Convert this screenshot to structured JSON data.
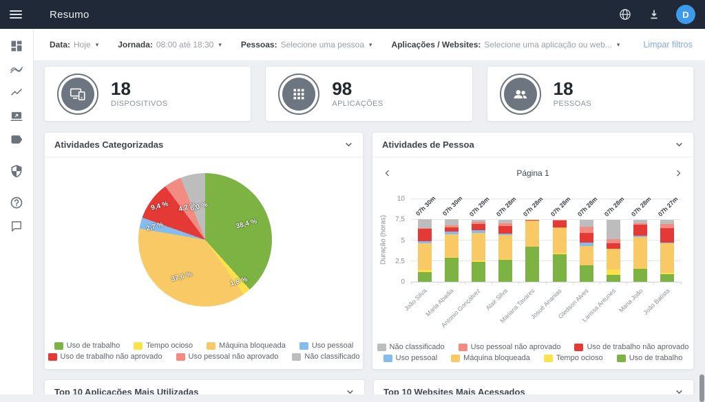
{
  "topbar": {
    "title": "Resumo",
    "avatar_initial": "D",
    "icons": [
      "menu-icon",
      "globe-icon",
      "download-icon"
    ]
  },
  "sidebar": {
    "items": [
      {
        "icon": "dashboard-icon"
      },
      {
        "icon": "multiline-chart-icon"
      },
      {
        "icon": "line-chart-icon"
      },
      {
        "icon": "screenshot-icon"
      },
      {
        "icon": "tag-icon"
      },
      {
        "icon": "shield-icon"
      },
      {
        "icon": "help-icon"
      },
      {
        "icon": "chat-icon"
      }
    ]
  },
  "filters": {
    "items": [
      {
        "label": "Data:",
        "value": "Hoje"
      },
      {
        "label": "Jornada:",
        "value": "08:00 até 18:30"
      },
      {
        "label": "Pessoas:",
        "value": "Selecione uma pessoa"
      },
      {
        "label": "Aplicações / Websites:",
        "value": "Selecione uma aplicação ou web..."
      }
    ],
    "clear_label": "Limpar filtros"
  },
  "stats": [
    {
      "value": "18",
      "label": "DISPOSITIVOS",
      "icon": "devices-icon"
    },
    {
      "value": "98",
      "label": "APLICAÇÕES",
      "icon": "apps-grid-icon"
    },
    {
      "value": "18",
      "label": "PESSOAS",
      "icon": "people-icon"
    }
  ],
  "cards": {
    "bottom": [
      {
        "title": "Top 10 Aplicações Mais Utilizadas"
      },
      {
        "title": "Top 10 Websites Mais Acessados"
      }
    ]
  },
  "colors": {
    "topbar_bg": "#202938",
    "avatar_blue": "#3d9be9",
    "link_blue": "#7fa9ea",
    "stat_icon_gray": "#6d7580"
  },
  "chart_data": [
    {
      "type": "pie",
      "title": "Atividades Categorizadas",
      "labels": [
        "Uso de trabalho",
        "Tempo ocioso",
        "Máquina bloqueada",
        "Uso pessoal",
        "Uso de trabalho não aprovado",
        "Uso pessoal não aprovado",
        "Não classificado"
      ],
      "values": [
        38.4,
        1.8,
        37.6,
        2.7,
        9.4,
        4.2,
        6.0
      ],
      "value_labels": [
        "38,4 %",
        "1,8 %",
        "37,6 %",
        "2,7 %",
        "9,4 %",
        "4,2 %",
        "6,0 %"
      ],
      "colors": [
        "#7CB342",
        "#FFE14C",
        "#F9C966",
        "#85BCEE",
        "#E53935",
        "#F28B82",
        "#BDBDBD"
      ],
      "legend_position": "bottom",
      "legend_rows": [
        [
          "Uso de trabalho",
          "Tempo ocioso",
          "Máquina bloqueada",
          "Uso pessoal"
        ],
        [
          "Uso de trabalho não aprovado",
          "Uso pessoal não aprovado",
          "Não classificado"
        ]
      ]
    },
    {
      "type": "bar",
      "stacked": true,
      "title": "Atividades de Pessoa",
      "pagination": "Página 1",
      "ylabel": "Duração (horas)",
      "ylim": [
        0,
        10
      ],
      "ytick_values": [
        0,
        2.5,
        5,
        7.5,
        10
      ],
      "ytick_labels": [
        "0",
        "2,5",
        "5",
        "7,5",
        "10"
      ],
      "grid": true,
      "categories": [
        "João Silva",
        "Maria Abadia",
        "Antonio Gonçálvez",
        "Alair Silva",
        "Mariana Tavares",
        "Josué Ananias",
        "Gledson Alves",
        "Larissa Antunes",
        "Maria João",
        "João Batista"
      ],
      "bar_total_labels": [
        "07h 30m",
        "07h 30m",
        "07h 29m",
        "07h 28m",
        "07h 28m",
        "07h 28m",
        "07h 28m",
        "07h 28m",
        "07h 28m",
        "07h 27m"
      ],
      "series": [
        {
          "name": "Uso de trabalho",
          "color": "#7CB342",
          "values": [
            1.2,
            2.9,
            2.4,
            2.65,
            4.2,
            3.3,
            1.95,
            0.8,
            1.55,
            0.9
          ]
        },
        {
          "name": "Tempo ocioso",
          "color": "#FFE14C",
          "values": [
            0.25,
            0.1,
            0.2,
            0.05,
            0,
            0.15,
            0.05,
            0.7,
            0.1,
            0.2
          ]
        },
        {
          "name": "Máquina bloqueada",
          "color": "#F9C966",
          "values": [
            3.15,
            2.7,
            3.25,
            2.9,
            3.15,
            3.05,
            2.3,
            2.5,
            3.7,
            3.5
          ]
        },
        {
          "name": "Uso pessoal",
          "color": "#85BCEE",
          "values": [
            0.3,
            0.35,
            0.35,
            0.2,
            0,
            0,
            0.4,
            0,
            0.15,
            0.1
          ]
        },
        {
          "name": "Uso de trabalho não aprovado",
          "color": "#E53935",
          "values": [
            1.45,
            0.45,
            0.75,
            0.9,
            0.12,
            0.85,
            1.2,
            0.65,
            1.35,
            1.75
          ]
        },
        {
          "name": "Uso pessoal não aprovado",
          "color": "#F28B82",
          "values": [
            0.15,
            0.3,
            0.25,
            0.35,
            0,
            0.12,
            0.75,
            0.45,
            0.15,
            0.5
          ]
        },
        {
          "name": "Não classificado",
          "color": "#BDBDBD",
          "values": [
            1.0,
            0.7,
            0.28,
            0.42,
            0,
            0,
            0.82,
            2.37,
            0.47,
            0.5
          ]
        }
      ],
      "legend_rows": [
        [
          "Não classificado",
          "Uso pessoal não aprovado",
          "Uso de trabalho não aprovado"
        ],
        [
          "Uso pessoal",
          "Máquina bloqueada",
          "Tempo ocioso",
          "Uso de trabalho"
        ]
      ]
    }
  ]
}
